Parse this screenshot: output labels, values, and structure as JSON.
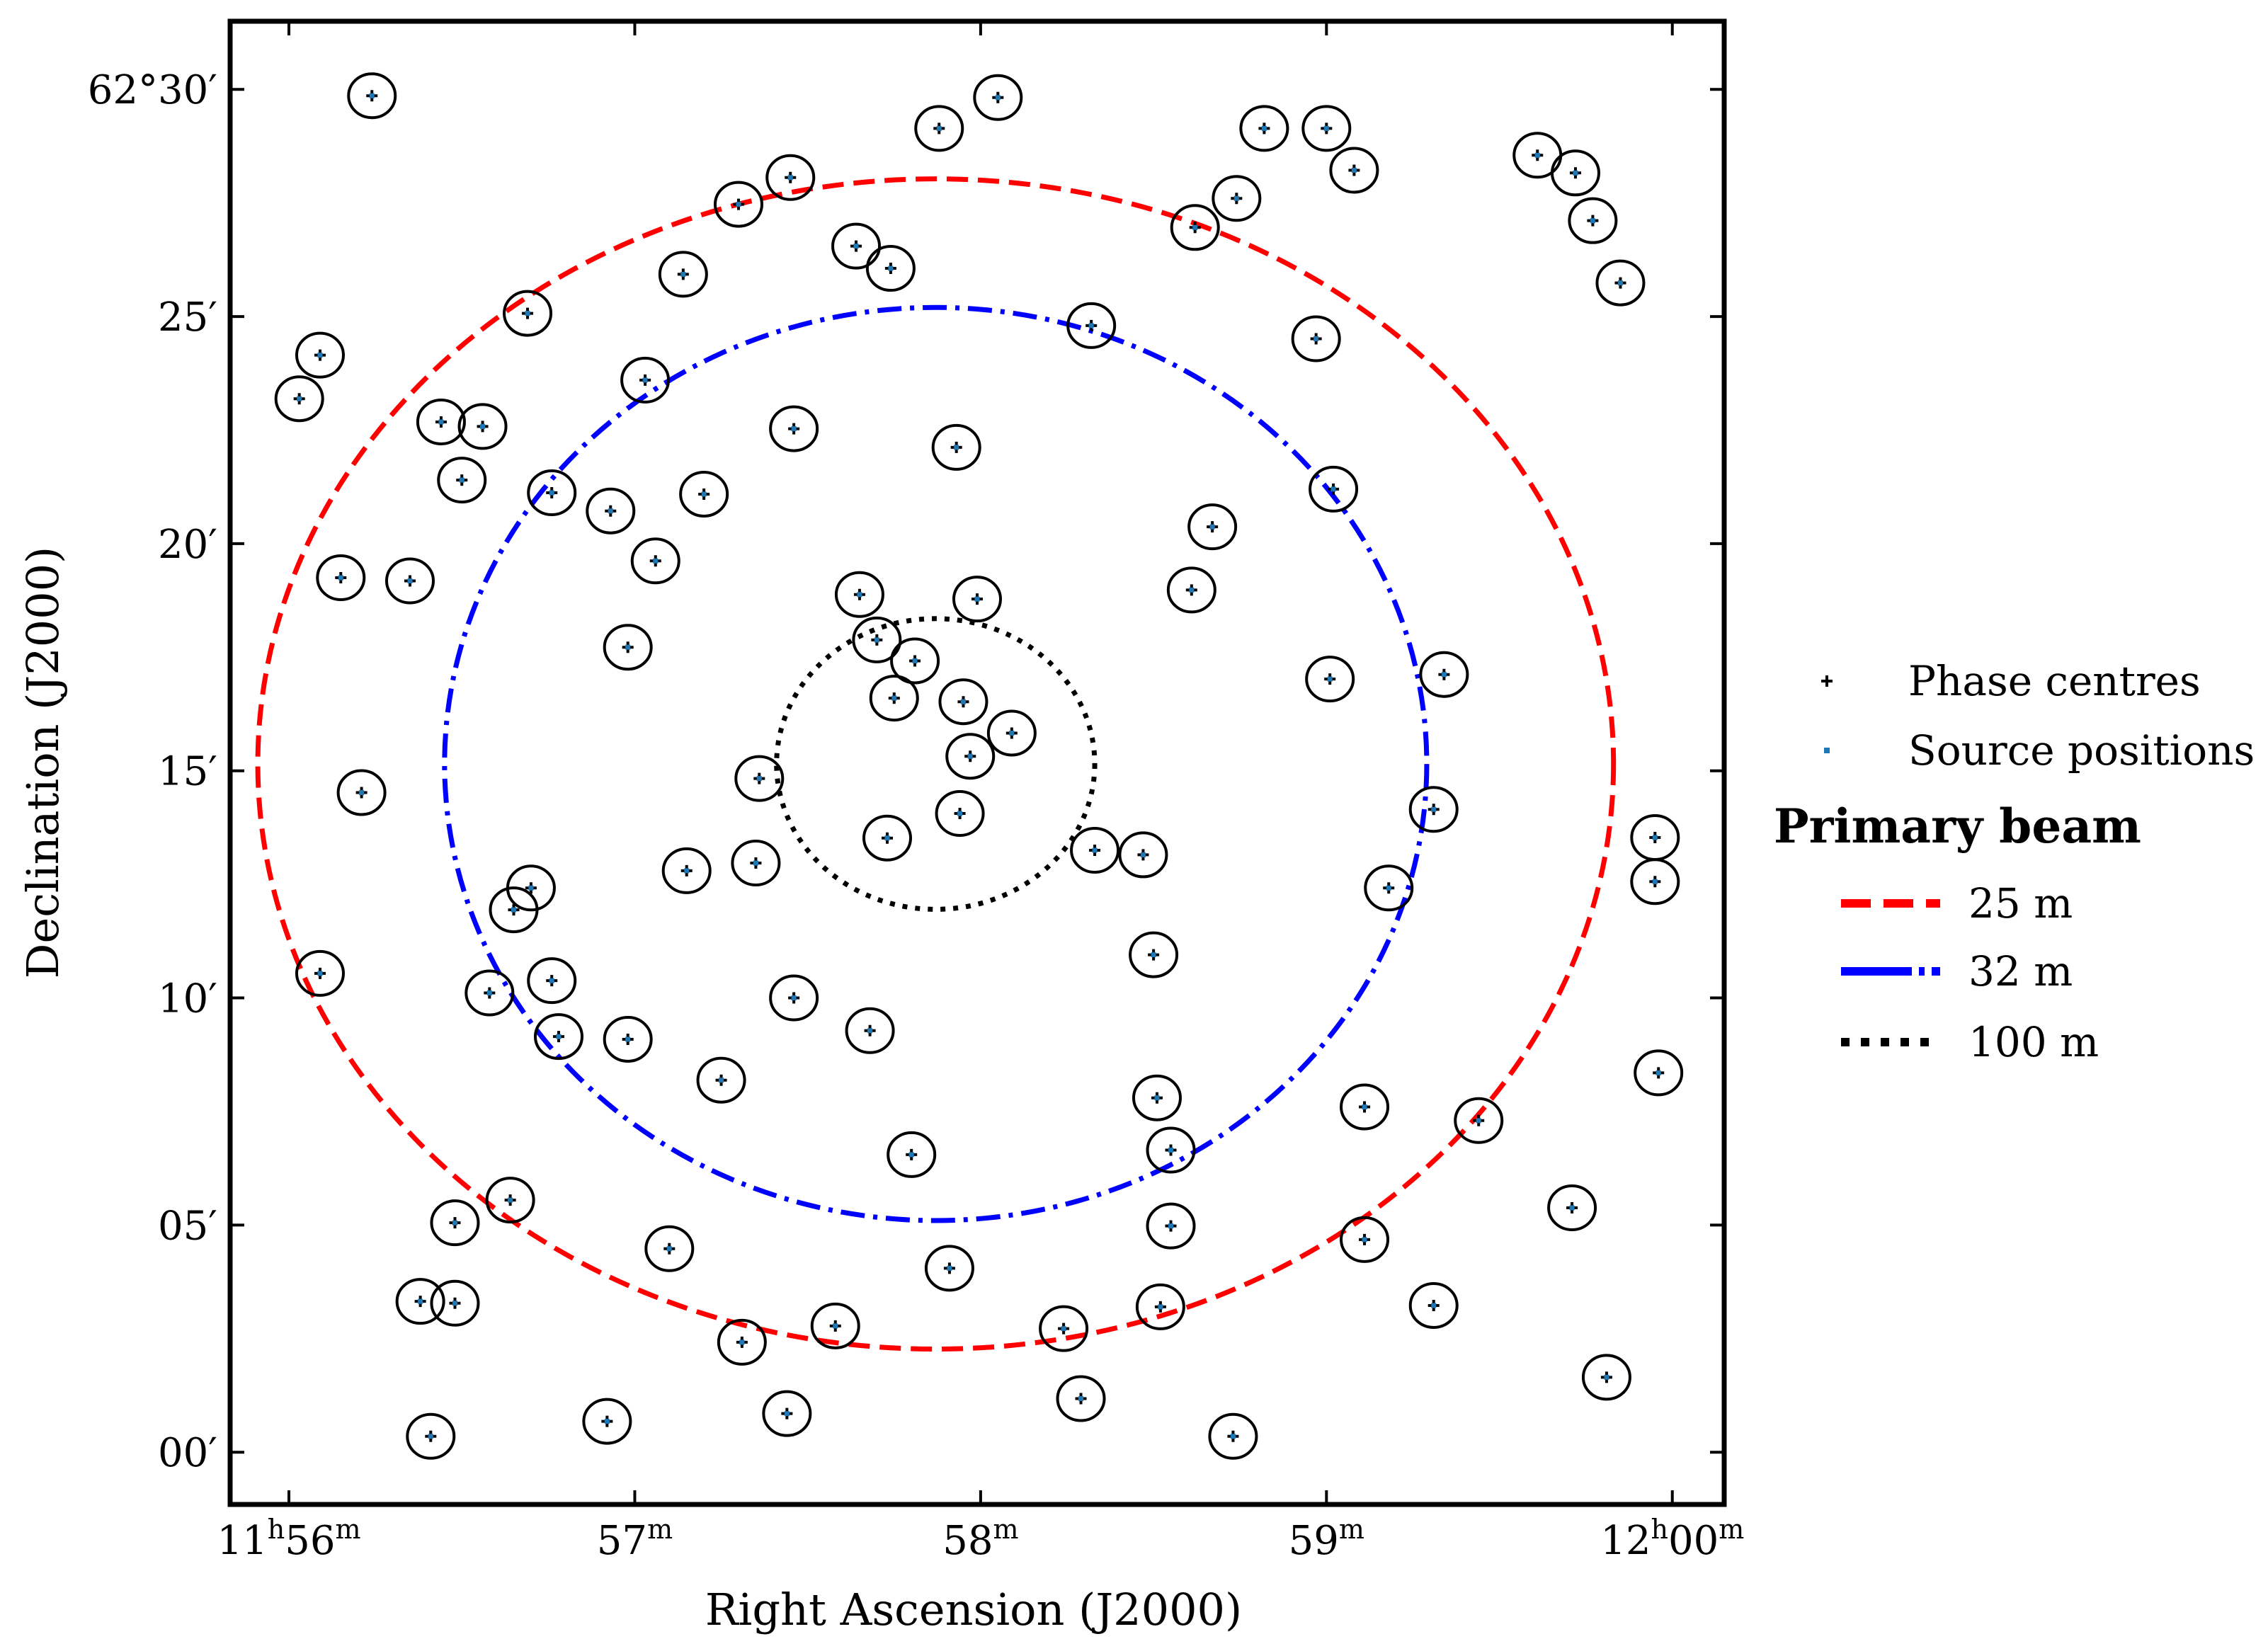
{
  "chart_data": {
    "type": "scatter",
    "xlabel": "Right Ascension (J2000)",
    "ylabel": "Declination (J2000)",
    "x_unit": "minutes of RA after 11h00m",
    "y_unit": "arcminutes after 62°00′",
    "xlim": [
      55.83,
      60.15
    ],
    "ylim": [
      -1.15,
      31.5
    ],
    "x_ticks": [
      {
        "value": 56,
        "label": "11h56m"
      },
      {
        "value": 57,
        "label": "57m"
      },
      {
        "value": 58,
        "label": "58m"
      },
      {
        "value": 59,
        "label": "59m"
      },
      {
        "value": 60,
        "label": "12h00m"
      }
    ],
    "y_ticks": [
      {
        "value": 0,
        "label": "00′"
      },
      {
        "value": 5,
        "label": "05′"
      },
      {
        "value": 10,
        "label": "10′"
      },
      {
        "value": 15,
        "label": "15′"
      },
      {
        "value": 20,
        "label": "20′"
      },
      {
        "value": 25,
        "label": "25′"
      },
      {
        "value": 30,
        "label": "62°30′"
      }
    ],
    "legend": {
      "position": "right",
      "markers": [
        {
          "name": "Phase centres",
          "color": "#000000",
          "marker": "plus"
        },
        {
          "name": "Source positions",
          "color": "#1f77b4",
          "marker": "dot"
        }
      ],
      "title": "Primary beam",
      "beams": [
        {
          "name": "25 m",
          "color": "#ff0000",
          "style": "dashed"
        },
        {
          "name": "32 m",
          "color": "#0000ff",
          "style": "dashdot"
        },
        {
          "name": "100 m",
          "color": "#000000",
          "style": "dotted"
        }
      ]
    },
    "beams": [
      {
        "name": "25 m",
        "center": [
          57.87,
          15.15
        ],
        "radius_x": 1.96,
        "radius_y": 12.88
      },
      {
        "name": "32 m",
        "center": [
          57.87,
          15.15
        ],
        "radius_x": 1.42,
        "radius_y": 10.05
      },
      {
        "name": "100 m",
        "center": [
          57.87,
          15.15
        ],
        "radius_x": 0.46,
        "radius_y": 3.2
      }
    ],
    "sources": [
      [
        56.24,
        29.86
      ],
      [
        57.88,
        29.14
      ],
      [
        58.05,
        29.82
      ],
      [
        58.82,
        29.14
      ],
      [
        59.0,
        29.14
      ],
      [
        59.08,
        28.22
      ],
      [
        59.61,
        28.55
      ],
      [
        59.72,
        28.16
      ],
      [
        59.77,
        27.11
      ],
      [
        59.85,
        25.74
      ],
      [
        57.45,
        28.06
      ],
      [
        57.3,
        27.47
      ],
      [
        58.74,
        27.6
      ],
      [
        58.62,
        26.96
      ],
      [
        57.64,
        26.55
      ],
      [
        57.74,
        26.06
      ],
      [
        57.14,
        25.93
      ],
      [
        56.69,
        25.07
      ],
      [
        56.09,
        24.15
      ],
      [
        56.03,
        23.19
      ],
      [
        58.32,
        24.8
      ],
      [
        58.97,
        24.51
      ],
      [
        57.03,
        23.6
      ],
      [
        56.44,
        22.68
      ],
      [
        56.56,
        22.58
      ],
      [
        56.5,
        21.4
      ],
      [
        57.46,
        22.53
      ],
      [
        57.93,
        22.12
      ],
      [
        56.76,
        21.12
      ],
      [
        56.93,
        20.72
      ],
      [
        57.2,
        21.09
      ],
      [
        59.02,
        21.2
      ],
      [
        58.67,
        20.37
      ],
      [
        56.15,
        19.25
      ],
      [
        56.35,
        19.18
      ],
      [
        57.06,
        19.62
      ],
      [
        58.61,
        18.98
      ],
      [
        57.65,
        18.88
      ],
      [
        57.99,
        18.78
      ],
      [
        57.7,
        17.88
      ],
      [
        57.81,
        17.42
      ],
      [
        56.98,
        17.72
      ],
      [
        59.01,
        17.02
      ],
      [
        59.34,
        17.12
      ],
      [
        57.75,
        16.6
      ],
      [
        57.95,
        16.52
      ],
      [
        58.09,
        15.83
      ],
      [
        57.97,
        15.32
      ],
      [
        57.36,
        14.83
      ],
      [
        56.21,
        14.52
      ],
      [
        57.94,
        14.06
      ],
      [
        59.31,
        14.15
      ],
      [
        57.73,
        13.52
      ],
      [
        58.33,
        13.25
      ],
      [
        58.47,
        13.15
      ],
      [
        59.95,
        13.53
      ],
      [
        57.35,
        12.97
      ],
      [
        57.15,
        12.8
      ],
      [
        56.7,
        12.42
      ],
      [
        56.65,
        11.94
      ],
      [
        59.95,
        12.56
      ],
      [
        59.18,
        12.42
      ],
      [
        56.09,
        10.54
      ],
      [
        58.5,
        10.95
      ],
      [
        56.58,
        10.11
      ],
      [
        56.76,
        10.38
      ],
      [
        57.46,
        10.0
      ],
      [
        56.78,
        9.15
      ],
      [
        56.98,
        9.09
      ],
      [
        57.68,
        9.28
      ],
      [
        57.25,
        8.19
      ],
      [
        59.96,
        8.35
      ],
      [
        58.51,
        7.8
      ],
      [
        59.11,
        7.6
      ],
      [
        59.44,
        7.3
      ],
      [
        57.8,
        6.55
      ],
      [
        58.55,
        6.65
      ],
      [
        56.64,
        5.55
      ],
      [
        56.48,
        5.05
      ],
      [
        58.55,
        4.98
      ],
      [
        59.71,
        5.38
      ],
      [
        59.11,
        4.68
      ],
      [
        57.1,
        4.48
      ],
      [
        57.91,
        4.05
      ],
      [
        56.38,
        3.32
      ],
      [
        56.48,
        3.28
      ],
      [
        58.52,
        3.2
      ],
      [
        59.31,
        3.23
      ],
      [
        57.31,
        2.42
      ],
      [
        57.58,
        2.78
      ],
      [
        58.24,
        2.72
      ],
      [
        59.81,
        1.65
      ],
      [
        58.29,
        1.18
      ],
      [
        57.44,
        0.85
      ],
      [
        56.92,
        0.68
      ],
      [
        56.41,
        0.35
      ],
      [
        58.73,
        0.35
      ]
    ],
    "phase_centres": "same positions as sources"
  }
}
